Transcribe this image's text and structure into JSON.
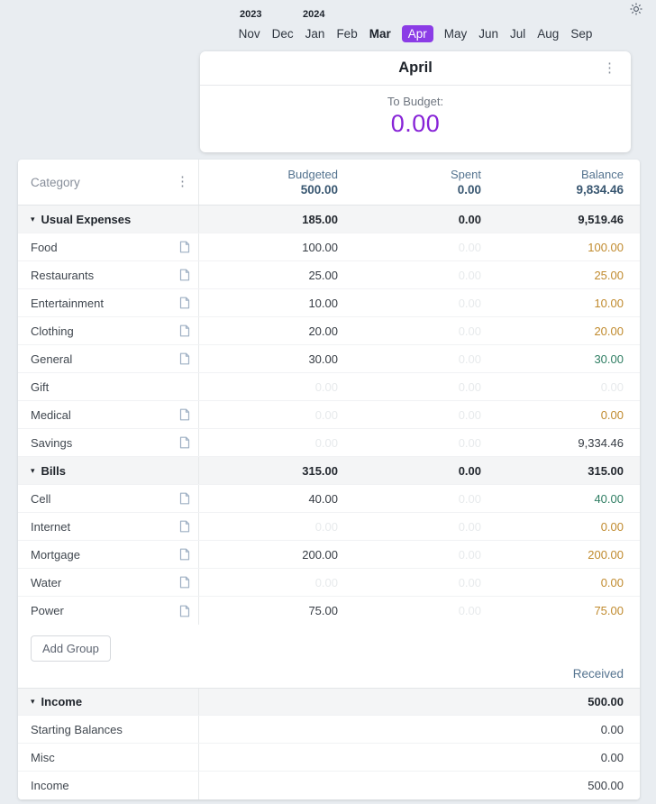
{
  "theme": {
    "accent_purple": "#8723d7",
    "selected_month_bg": "#8b3ce6",
    "warning_amount": "#c08a2d",
    "positive_amount": "#2f7e63",
    "faint_amount": "#e7eaec",
    "header_blue": "#54738f"
  },
  "topbar": {
    "theme_icon": "sun-icon"
  },
  "month_picker": {
    "years": [
      {
        "label": "2023"
      },
      {
        "label": "2024"
      }
    ],
    "months": [
      {
        "label": "Nov",
        "state": "normal"
      },
      {
        "label": "Dec",
        "state": "normal"
      },
      {
        "label": "Jan",
        "state": "normal"
      },
      {
        "label": "Feb",
        "state": "normal"
      },
      {
        "label": "Mar",
        "state": "current"
      },
      {
        "label": "Apr",
        "state": "selected"
      },
      {
        "label": "May",
        "state": "normal"
      },
      {
        "label": "Jun",
        "state": "normal"
      },
      {
        "label": "Jul",
        "state": "normal"
      },
      {
        "label": "Aug",
        "state": "normal"
      },
      {
        "label": "Sep",
        "state": "normal"
      }
    ]
  },
  "month_card": {
    "title": "April",
    "menu_icon": "kebab-menu-icon",
    "to_budget_label": "To Budget:",
    "to_budget_value": "0.00"
  },
  "table": {
    "category_header": "Category",
    "columns": [
      {
        "label": "Budgeted",
        "total": "500.00"
      },
      {
        "label": "Spent",
        "total": "0.00"
      },
      {
        "label": "Balance",
        "total": "9,834.46"
      }
    ],
    "groups": [
      {
        "name": "Usual Expenses",
        "budgeted": "185.00",
        "spent": "0.00",
        "balance": "9,519.46",
        "rows": [
          {
            "name": "Food",
            "has_note": true,
            "budgeted": "100.00",
            "budgeted_state": "normal",
            "spent": "0.00",
            "spent_state": "faint",
            "balance": "100.00",
            "balance_state": "warning"
          },
          {
            "name": "Restaurants",
            "has_note": true,
            "budgeted": "25.00",
            "budgeted_state": "normal",
            "spent": "0.00",
            "spent_state": "faint",
            "balance": "25.00",
            "balance_state": "warning"
          },
          {
            "name": "Entertainment",
            "has_note": true,
            "budgeted": "10.00",
            "budgeted_state": "normal",
            "spent": "0.00",
            "spent_state": "faint",
            "balance": "10.00",
            "balance_state": "warning"
          },
          {
            "name": "Clothing",
            "has_note": true,
            "budgeted": "20.00",
            "budgeted_state": "normal",
            "spent": "0.00",
            "spent_state": "faint",
            "balance": "20.00",
            "balance_state": "warning"
          },
          {
            "name": "General",
            "has_note": true,
            "budgeted": "30.00",
            "budgeted_state": "normal",
            "spent": "0.00",
            "spent_state": "faint",
            "balance": "30.00",
            "balance_state": "positive"
          },
          {
            "name": "Gift",
            "has_note": false,
            "budgeted": "0.00",
            "budgeted_state": "faint",
            "spent": "0.00",
            "spent_state": "faint",
            "balance": "0.00",
            "balance_state": "faint"
          },
          {
            "name": "Medical",
            "has_note": true,
            "budgeted": "0.00",
            "budgeted_state": "faint",
            "spent": "0.00",
            "spent_state": "faint",
            "balance": "0.00",
            "balance_state": "warning"
          },
          {
            "name": "Savings",
            "has_note": true,
            "budgeted": "0.00",
            "budgeted_state": "faint",
            "spent": "0.00",
            "spent_state": "faint",
            "balance": "9,334.46",
            "balance_state": "neutral"
          }
        ]
      },
      {
        "name": "Bills",
        "budgeted": "315.00",
        "spent": "0.00",
        "balance": "315.00",
        "rows": [
          {
            "name": "Cell",
            "has_note": true,
            "budgeted": "40.00",
            "budgeted_state": "normal",
            "spent": "0.00",
            "spent_state": "faint",
            "balance": "40.00",
            "balance_state": "positive"
          },
          {
            "name": "Internet",
            "has_note": true,
            "budgeted": "0.00",
            "budgeted_state": "faint",
            "spent": "0.00",
            "spent_state": "faint",
            "balance": "0.00",
            "balance_state": "warning"
          },
          {
            "name": "Mortgage",
            "has_note": true,
            "budgeted": "200.00",
            "budgeted_state": "normal",
            "spent": "0.00",
            "spent_state": "faint",
            "balance": "200.00",
            "balance_state": "warning"
          },
          {
            "name": "Water",
            "has_note": true,
            "budgeted": "0.00",
            "budgeted_state": "faint",
            "spent": "0.00",
            "spent_state": "faint",
            "balance": "0.00",
            "balance_state": "warning"
          },
          {
            "name": "Power",
            "has_note": true,
            "budgeted": "75.00",
            "budgeted_state": "normal",
            "spent": "0.00",
            "spent_state": "faint",
            "balance": "75.00",
            "balance_state": "warning"
          }
        ]
      }
    ],
    "add_group_label": "Add Group",
    "received_label": "Received",
    "income_group": {
      "name": "Income",
      "balance": "500.00",
      "rows": [
        {
          "name": "Starting Balances",
          "balance": "0.00"
        },
        {
          "name": "Misc",
          "balance": "0.00"
        },
        {
          "name": "Income",
          "balance": "500.00"
        }
      ]
    }
  }
}
